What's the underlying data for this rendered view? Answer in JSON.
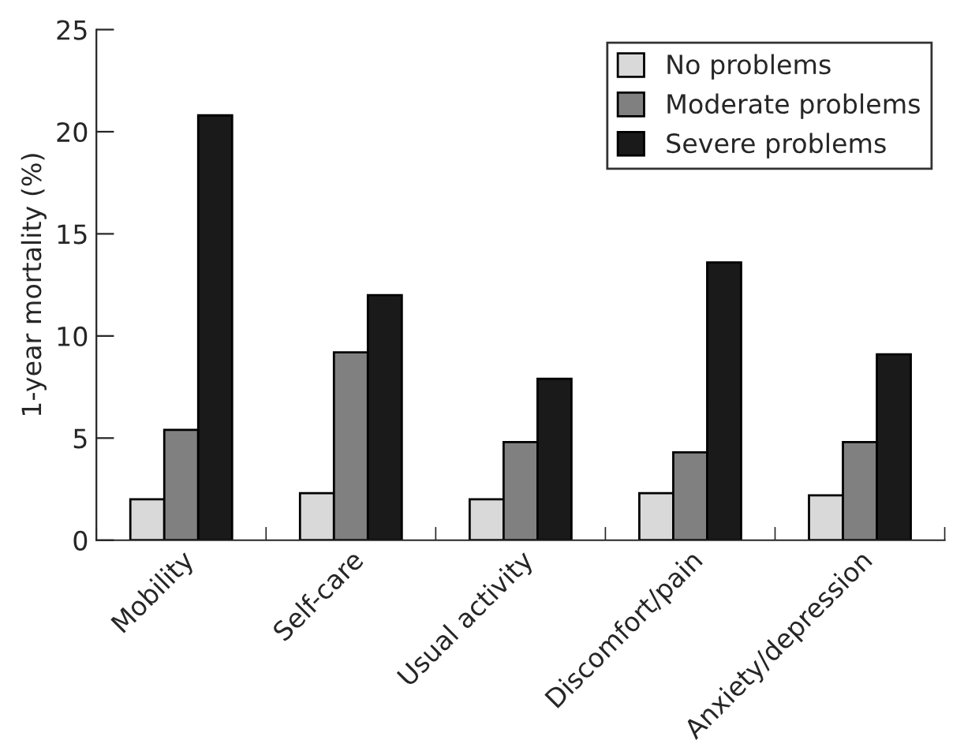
{
  "chart_data": {
    "type": "bar",
    "ylabel": "1-year mortality (%)",
    "categories": [
      "Mobility",
      "Self-care",
      "Usual activity",
      "Discomfort/pain",
      "Anxiety/depression"
    ],
    "series": [
      {
        "name": "No problems",
        "color": "#d9d9d9",
        "values": [
          2.0,
          2.3,
          2.0,
          2.3,
          2.2
        ]
      },
      {
        "name": "Moderate problems",
        "color": "#808080",
        "values": [
          5.4,
          9.2,
          4.8,
          4.3,
          4.8
        ]
      },
      {
        "name": "Severe problems",
        "color": "#1a1a1a",
        "values": [
          20.8,
          12.0,
          7.9,
          13.6,
          9.1
        ]
      }
    ],
    "ylim": [
      0,
      25
    ],
    "yticks": [
      0,
      5,
      10,
      15,
      20,
      25
    ],
    "grid": false,
    "legend": "top right"
  }
}
